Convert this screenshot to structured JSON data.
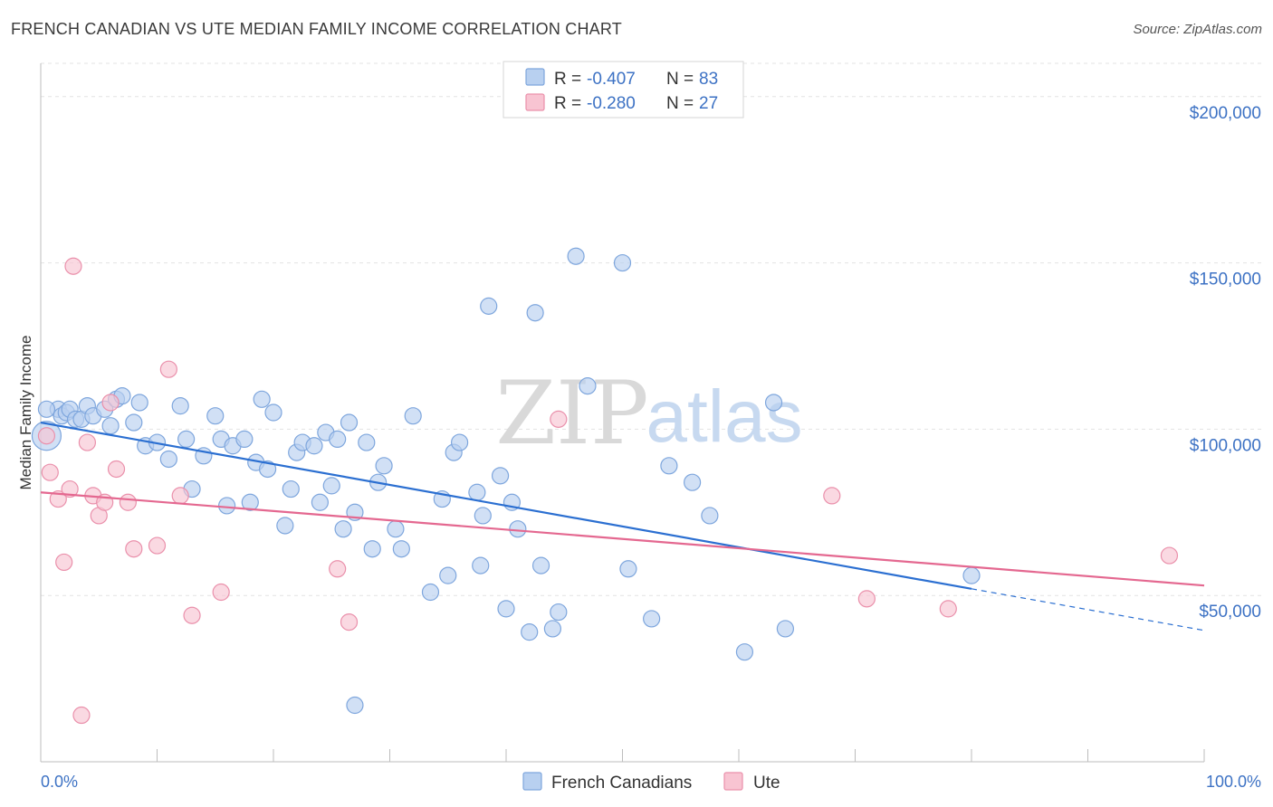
{
  "header": {
    "title": "FRENCH CANADIAN VS UTE MEDIAN FAMILY INCOME CORRELATION CHART",
    "source": "Source: ZipAtlas.com"
  },
  "colors": {
    "blue_fill": "#b8d0f0",
    "blue_stroke": "#7ea6dd",
    "blue_line": "#2b6fd1",
    "pink_fill": "#f8c4d2",
    "pink_stroke": "#ea90ab",
    "pink_line": "#e46890",
    "label": "#3d72c4",
    "grid": "#e3e3e3"
  },
  "legend": {
    "rows": [
      {
        "r_label": "R = ",
        "r_value": "-0.407",
        "n_label": "N = ",
        "n_value": "83"
      },
      {
        "r_label": "R = ",
        "r_value": "-0.280",
        "n_label": "N = ",
        "n_value": "27"
      }
    ]
  },
  "chart_data": {
    "type": "scatter",
    "xlabel": "",
    "ylabel": "Median Family Income",
    "xlim": [
      0,
      100
    ],
    "ylim": [
      0,
      210000
    ],
    "x_tick_labels": [
      "0.0%",
      "100.0%"
    ],
    "y_ticks": [
      50000,
      100000,
      150000,
      200000
    ],
    "y_tick_labels": [
      "$50,000",
      "$100,000",
      "$150,000",
      "$200,000"
    ],
    "grid": "horizontal dashed",
    "legend_position": "top-center",
    "watermark": {
      "zip": "ZIP",
      "atlas": "atlas"
    },
    "series": [
      {
        "name": "French Canadians",
        "points": [
          [
            0.5,
            98000
          ],
          [
            1.5,
            106000
          ],
          [
            1.8,
            104000
          ],
          [
            2.2,
            105000
          ],
          [
            2.5,
            106000
          ],
          [
            3.0,
            103000
          ],
          [
            3.5,
            103000
          ],
          [
            4.0,
            107000
          ],
          [
            4.5,
            104000
          ],
          [
            5.5,
            106000
          ],
          [
            6.0,
            101000
          ],
          [
            6.5,
            109000
          ],
          [
            7.0,
            110000
          ],
          [
            8.0,
            102000
          ],
          [
            8.5,
            108000
          ],
          [
            9.0,
            95000
          ],
          [
            10.0,
            96000
          ],
          [
            11.0,
            91000
          ],
          [
            12.0,
            107000
          ],
          [
            12.5,
            97000
          ],
          [
            13.0,
            82000
          ],
          [
            14.0,
            92000
          ],
          [
            15.0,
            104000
          ],
          [
            15.5,
            97000
          ],
          [
            16.0,
            77000
          ],
          [
            16.5,
            95000
          ],
          [
            17.5,
            97000
          ],
          [
            18.0,
            78000
          ],
          [
            18.5,
            90000
          ],
          [
            19.0,
            109000
          ],
          [
            19.5,
            88000
          ],
          [
            20.0,
            105000
          ],
          [
            21.0,
            71000
          ],
          [
            21.5,
            82000
          ],
          [
            22.0,
            93000
          ],
          [
            22.5,
            96000
          ],
          [
            23.5,
            95000
          ],
          [
            24.0,
            78000
          ],
          [
            24.5,
            99000
          ],
          [
            25.0,
            83000
          ],
          [
            25.5,
            97000
          ],
          [
            26.0,
            70000
          ],
          [
            26.5,
            102000
          ],
          [
            27.0,
            75000
          ],
          [
            28.0,
            96000
          ],
          [
            28.5,
            64000
          ],
          [
            29.0,
            84000
          ],
          [
            29.5,
            89000
          ],
          [
            30.5,
            70000
          ],
          [
            31.0,
            64000
          ],
          [
            32.0,
            104000
          ],
          [
            33.5,
            51000
          ],
          [
            34.5,
            79000
          ],
          [
            35.0,
            56000
          ],
          [
            35.5,
            93000
          ],
          [
            36.0,
            96000
          ],
          [
            37.5,
            81000
          ],
          [
            37.8,
            59000
          ],
          [
            38.0,
            74000
          ],
          [
            38.5,
            137000
          ],
          [
            39.5,
            86000
          ],
          [
            40.0,
            46000
          ],
          [
            40.5,
            78000
          ],
          [
            41.0,
            70000
          ],
          [
            42.0,
            39000
          ],
          [
            42.5,
            135000
          ],
          [
            43.0,
            59000
          ],
          [
            44.0,
            40000
          ],
          [
            44.5,
            45000
          ],
          [
            46.0,
            152000
          ],
          [
            47.0,
            113000
          ],
          [
            50.0,
            150000
          ],
          [
            50.5,
            58000
          ],
          [
            52.5,
            43000
          ],
          [
            54.0,
            89000
          ],
          [
            56.0,
            84000
          ],
          [
            57.5,
            74000
          ],
          [
            60.5,
            33000
          ],
          [
            63.0,
            108000
          ],
          [
            64.0,
            40000
          ],
          [
            80.0,
            56000
          ],
          [
            0.5,
            106000
          ],
          [
            27.0,
            17000
          ]
        ]
      },
      {
        "name": "Ute",
        "points": [
          [
            0.5,
            98000
          ],
          [
            0.8,
            87000
          ],
          [
            1.5,
            79000
          ],
          [
            2.0,
            60000
          ],
          [
            2.5,
            82000
          ],
          [
            2.8,
            149000
          ],
          [
            4.0,
            96000
          ],
          [
            4.5,
            80000
          ],
          [
            5.0,
            74000
          ],
          [
            5.5,
            78000
          ],
          [
            6.0,
            108000
          ],
          [
            6.5,
            88000
          ],
          [
            7.5,
            78000
          ],
          [
            8.0,
            64000
          ],
          [
            10.0,
            65000
          ],
          [
            11.0,
            118000
          ],
          [
            12.0,
            80000
          ],
          [
            13.0,
            44000
          ],
          [
            15.5,
            51000
          ],
          [
            25.5,
            58000
          ],
          [
            26.5,
            42000
          ],
          [
            44.5,
            103000
          ],
          [
            68.0,
            80000
          ],
          [
            71.0,
            49000
          ],
          [
            78.0,
            46000
          ],
          [
            97.0,
            62000
          ],
          [
            3.5,
            14000
          ]
        ]
      }
    ],
    "trend_lines": [
      {
        "name": "French Canadians",
        "x0": 0,
        "y0": 102000,
        "x1": 80,
        "y1": 52000,
        "dashed_to_x": 100,
        "dashed_to_y": 39500
      },
      {
        "name": "Ute",
        "x0": 0,
        "y0": 81000,
        "x1": 100,
        "y1": 53000
      }
    ]
  }
}
